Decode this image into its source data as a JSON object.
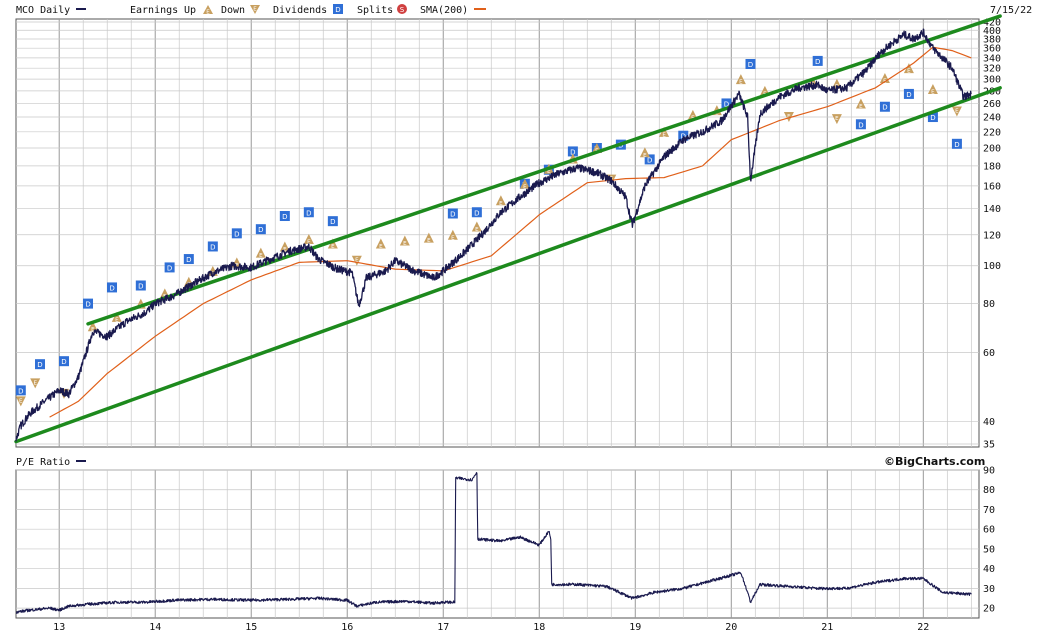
{
  "header": {
    "symbol_label": "MCO Daily",
    "earnings_label": "Earnings",
    "up_label": "Up",
    "down_label": "Down",
    "dividends_label": "Dividends",
    "splits_label": "Splits",
    "sma_label": "SMA(200)",
    "date": "7/15/22"
  },
  "lower": {
    "title": "P/E Ratio",
    "brand": "©BigCharts.com"
  },
  "colors": {
    "price": "#1a1a4e",
    "sma": "#e0601a",
    "trend": "#1d8a1d",
    "dividend": "#2f6fd6",
    "earnings": "#c8a060",
    "split": "#d04040",
    "grid": "#c8c8c8"
  },
  "icons": {
    "up": "earnings-up-triangle-icon",
    "down": "earnings-down-triangle-icon",
    "dividend": "dividend-square-icon",
    "split": "split-circle-icon"
  },
  "chart_data": [
    {
      "type": "line",
      "symbol": "MCO",
      "scale": "log",
      "ylim": [
        35,
        420
      ],
      "y_ticks": [
        35,
        40,
        60,
        80,
        100,
        120,
        140,
        160,
        180,
        200,
        220,
        240,
        260,
        280,
        300,
        320,
        340,
        360,
        380,
        400,
        420
      ],
      "x_ticks": [
        "13",
        "14",
        "15",
        "16",
        "17",
        "18",
        "19",
        "20",
        "21",
        "22"
      ],
      "series": [
        {
          "name": "MCO Daily",
          "x": [
            2012.55,
            2012.6,
            2012.7,
            2012.85,
            2013.0,
            2013.1,
            2013.2,
            2013.3,
            2013.35,
            2013.5,
            2013.7,
            2013.9,
            2014.0,
            2014.2,
            2014.4,
            2014.6,
            2014.8,
            2015.0,
            2015.2,
            2015.4,
            2015.6,
            2015.7,
            2015.9,
            2016.05,
            2016.12,
            2016.2,
            2016.4,
            2016.5,
            2016.7,
            2016.9,
            2017.0,
            2017.2,
            2017.4,
            2017.6,
            2017.8,
            2018.0,
            2018.2,
            2018.4,
            2018.6,
            2018.75,
            2018.9,
            2018.97,
            2019.1,
            2019.3,
            2019.5,
            2019.7,
            2019.9,
            2020.08,
            2020.17,
            2020.2,
            2020.3,
            2020.5,
            2020.7,
            2020.9,
            2021.0,
            2021.2,
            2021.4,
            2021.55,
            2021.7,
            2021.8,
            2021.9,
            2022.0,
            2022.1,
            2022.2,
            2022.3,
            2022.42,
            2022.5
          ],
          "values": [
            36,
            39,
            42,
            45,
            48,
            47,
            52,
            62,
            68,
            66,
            72,
            76,
            80,
            84,
            90,
            96,
            100,
            99,
            104,
            109,
            112,
            104,
            98,
            96,
            79,
            93,
            97,
            103,
            97,
            93,
            97,
            107,
            120,
            137,
            150,
            163,
            172,
            178,
            173,
            165,
            150,
            127,
            160,
            190,
            210,
            220,
            235,
            275,
            240,
            165,
            245,
            270,
            285,
            290,
            280,
            285,
            315,
            350,
            375,
            390,
            380,
            395,
            360,
            340,
            320,
            270,
            275
          ]
        },
        {
          "name": "SMA(200)",
          "x": [
            2012.9,
            2013.2,
            2013.5,
            2014.0,
            2014.5,
            2015.0,
            2015.5,
            2016.0,
            2016.5,
            2017.0,
            2017.5,
            2018.0,
            2018.5,
            2018.9,
            2019.3,
            2019.7,
            2020.0,
            2020.5,
            2021.0,
            2021.5,
            2021.9,
            2022.1,
            2022.3,
            2022.5
          ],
          "values": [
            41,
            45,
            53,
            66,
            80,
            92,
            102,
            103,
            98,
            97,
            106,
            135,
            163,
            167,
            168,
            180,
            210,
            235,
            255,
            285,
            330,
            362,
            355,
            340
          ]
        }
      ],
      "trend_channel": [
        {
          "x": [
            2013.3,
            2022.8
          ],
          "values": [
            71,
            435
          ]
        },
        {
          "x": [
            2012.55,
            2022.8
          ],
          "values": [
            35.5,
            285
          ]
        }
      ],
      "dividends": {
        "x": [
          2012.6,
          2012.8,
          2013.05,
          2013.3,
          2013.55,
          2013.85,
          2014.15,
          2014.35,
          2014.6,
          2014.85,
          2015.1,
          2015.35,
          2015.6,
          2015.85,
          2017.1,
          2017.35,
          2017.85,
          2018.1,
          2018.35,
          2018.6,
          2018.85,
          2019.15,
          2019.5,
          2019.95,
          2020.2,
          2020.9,
          2021.35,
          2021.6,
          2021.85,
          2022.1,
          2022.35
        ],
        "values": [
          48,
          56,
          57,
          80,
          88,
          89,
          99,
          104,
          112,
          121,
          124,
          134,
          137,
          130,
          136,
          137,
          162,
          176,
          196,
          200,
          204,
          187,
          215,
          260,
          328,
          334,
          230,
          255,
          275,
          240,
          205
        ]
      },
      "earnings_up": {
        "x": [
          2013.35,
          2013.6,
          2013.85,
          2014.1,
          2014.35,
          2014.6,
          2014.85,
          2015.1,
          2015.35,
          2015.6,
          2015.85,
          2016.35,
          2016.6,
          2016.85,
          2017.1,
          2017.35,
          2017.6,
          2017.85,
          2018.1,
          2018.35,
          2018.6,
          2019.1,
          2019.3,
          2019.6,
          2019.85,
          2020.1,
          2020.35,
          2020.85,
          2021.1,
          2021.35,
          2021.6,
          2021.85,
          2022.1
        ],
        "values": [
          70,
          74,
          80,
          85,
          91,
          97,
          102,
          108,
          112,
          117,
          114,
          114,
          116,
          118,
          120,
          126,
          147,
          162,
          177,
          188,
          200,
          195,
          220,
          243,
          250,
          300,
          280,
          295,
          292,
          260,
          302,
          320,
          283
        ]
      },
      "earnings_down": {
        "x": [
          2012.6,
          2012.75,
          2013.05,
          2016.1,
          2018.75,
          2020.6,
          2021.1,
          2022.35
        ],
        "values": [
          45,
          50,
          47,
          103,
          166,
          240,
          237,
          248
        ]
      },
      "splits": {
        "x": [],
        "values": []
      }
    },
    {
      "type": "line",
      "title": "P/E Ratio",
      "ylim": [
        15,
        90
      ],
      "y_ticks": [
        20,
        30,
        40,
        50,
        60,
        70,
        80,
        90
      ],
      "series": [
        {
          "name": "P/E Ratio",
          "x": [
            2012.55,
            2012.7,
            2012.9,
            2013.0,
            2013.1,
            2013.3,
            2013.6,
            2013.9,
            2014.2,
            2014.6,
            2015.0,
            2015.4,
            2015.7,
            2016.0,
            2016.1,
            2016.3,
            2016.6,
            2016.9,
            2017.0,
            2017.12,
            2017.13,
            2017.3,
            2017.35,
            2017.36,
            2017.6,
            2017.8,
            2018.0,
            2018.1,
            2018.12,
            2018.13,
            2018.4,
            2018.7,
            2018.97,
            2019.2,
            2019.5,
            2019.8,
            2020.1,
            2020.17,
            2020.2,
            2020.3,
            2020.6,
            2020.9,
            2021.2,
            2021.5,
            2021.8,
            2022.0,
            2022.2,
            2022.5
          ],
          "values": [
            18,
            19,
            20,
            19,
            21,
            22,
            23,
            23,
            24,
            24.5,
            24,
            24.5,
            25,
            24,
            21,
            23,
            23.5,
            22.5,
            23,
            23,
            86,
            85,
            89,
            55,
            54,
            56,
            52,
            59,
            55,
            32,
            32,
            31,
            25,
            28,
            30,
            34,
            38,
            28,
            23,
            32,
            31,
            30,
            30,
            33,
            35,
            35,
            28,
            27
          ]
        }
      ]
    }
  ]
}
